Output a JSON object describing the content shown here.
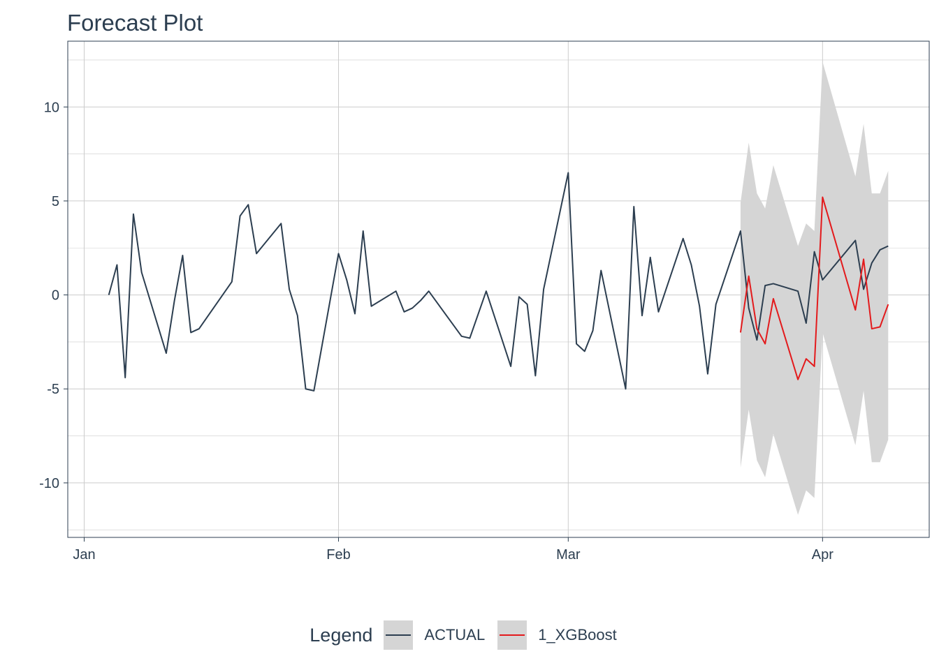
{
  "chart_data": {
    "type": "line",
    "title": "Forecast Plot",
    "xlabel": "",
    "ylabel": "",
    "x_ticks": [
      {
        "date": "2023-01-01",
        "label": "Jan"
      },
      {
        "date": "2023-02-01",
        "label": "Feb"
      },
      {
        "date": "2023-03-01",
        "label": "Mar"
      },
      {
        "date": "2023-04-01",
        "label": "Apr"
      }
    ],
    "y_ticks": [
      -10,
      -5,
      0,
      5,
      10
    ],
    "xlim": [
      "2022-12-30",
      "2023-04-14"
    ],
    "ylim": [
      -12.9,
      13.5
    ],
    "grid": true,
    "legend_position": "bottom",
    "legend_title": "Legend",
    "colors": {
      "ACTUAL": "#2c3e50",
      "1_XGBoost": "#e31a1c",
      "band": "#d5d5d5",
      "grid": "#cccccc"
    },
    "series": [
      {
        "name": "ACTUAL",
        "x": [
          "2023-01-04",
          "2023-01-05",
          "2023-01-06",
          "2023-01-07",
          "2023-01-08",
          "2023-01-11",
          "2023-01-12",
          "2023-01-13",
          "2023-01-14",
          "2023-01-15",
          "2023-01-19",
          "2023-01-20",
          "2023-01-21",
          "2023-01-22",
          "2023-01-25",
          "2023-01-26",
          "2023-01-27",
          "2023-01-28",
          "2023-01-29",
          "2023-02-01",
          "2023-02-02",
          "2023-02-03",
          "2023-02-04",
          "2023-02-05",
          "2023-02-08",
          "2023-02-09",
          "2023-02-10",
          "2023-02-11",
          "2023-02-12",
          "2023-02-16",
          "2023-02-17",
          "2023-02-19",
          "2023-02-22",
          "2023-02-23",
          "2023-02-24",
          "2023-02-25",
          "2023-02-26",
          "2023-03-01",
          "2023-03-02",
          "2023-03-03",
          "2023-03-04",
          "2023-03-05",
          "2023-03-08",
          "2023-03-09",
          "2023-03-10",
          "2023-03-11",
          "2023-03-12",
          "2023-03-15",
          "2023-03-16",
          "2023-03-17",
          "2023-03-18",
          "2023-03-19",
          "2023-03-22",
          "2023-03-23",
          "2023-03-24",
          "2023-03-25",
          "2023-03-26",
          "2023-03-29",
          "2023-03-30",
          "2023-03-31",
          "2023-04-01",
          "2023-04-05",
          "2023-04-06",
          "2023-04-07",
          "2023-04-08",
          "2023-04-09"
        ],
        "values": [
          0,
          1.6,
          -4.4,
          4.3,
          1.2,
          -3.1,
          -0.3,
          2.1,
          -2.0,
          -1.8,
          0.7,
          4.2,
          4.8,
          2.2,
          3.8,
          0.3,
          -1.1,
          -5.0,
          -5.1,
          2.2,
          0.8,
          -1.0,
          3.4,
          -0.6,
          0.2,
          -0.9,
          -0.7,
          -0.3,
          0.2,
          -2.2,
          -2.3,
          0.2,
          -3.8,
          -0.1,
          -0.5,
          -4.3,
          0.3,
          6.5,
          -2.6,
          -3.0,
          -1.9,
          1.3,
          -5.0,
          4.7,
          -1.1,
          2.0,
          -0.9,
          3.0,
          1.6,
          -0.6,
          -4.2,
          -0.5,
          3.4,
          -0.7,
          -2.4,
          0.5,
          0.6,
          0.2,
          -1.5,
          2.3,
          0.8,
          2.9,
          0.3,
          1.7,
          2.4,
          2.6
        ]
      },
      {
        "name": "1_XGBoost",
        "x": [
          "2023-03-22",
          "2023-03-23",
          "2023-03-24",
          "2023-03-25",
          "2023-03-26",
          "2023-03-29",
          "2023-03-30",
          "2023-03-31",
          "2023-04-01",
          "2023-04-05",
          "2023-04-06",
          "2023-04-07",
          "2023-04-08",
          "2023-04-09"
        ],
        "values": [
          -2.0,
          1.0,
          -1.8,
          -2.6,
          -0.2,
          -4.5,
          -3.4,
          -3.8,
          5.2,
          -0.8,
          1.9,
          -1.8,
          -1.7,
          -0.5
        ],
        "band_lower": [
          -9.2,
          -6.1,
          -8.8,
          -9.7,
          -7.4,
          -11.7,
          -10.4,
          -10.8,
          -2.0,
          -8.0,
          -5.1,
          -8.9,
          -8.9,
          -7.7
        ],
        "band_upper": [
          4.9,
          8.1,
          5.4,
          4.6,
          6.9,
          2.6,
          3.8,
          3.4,
          12.4,
          6.3,
          9.1,
          5.4,
          5.4,
          6.6
        ]
      }
    ]
  }
}
